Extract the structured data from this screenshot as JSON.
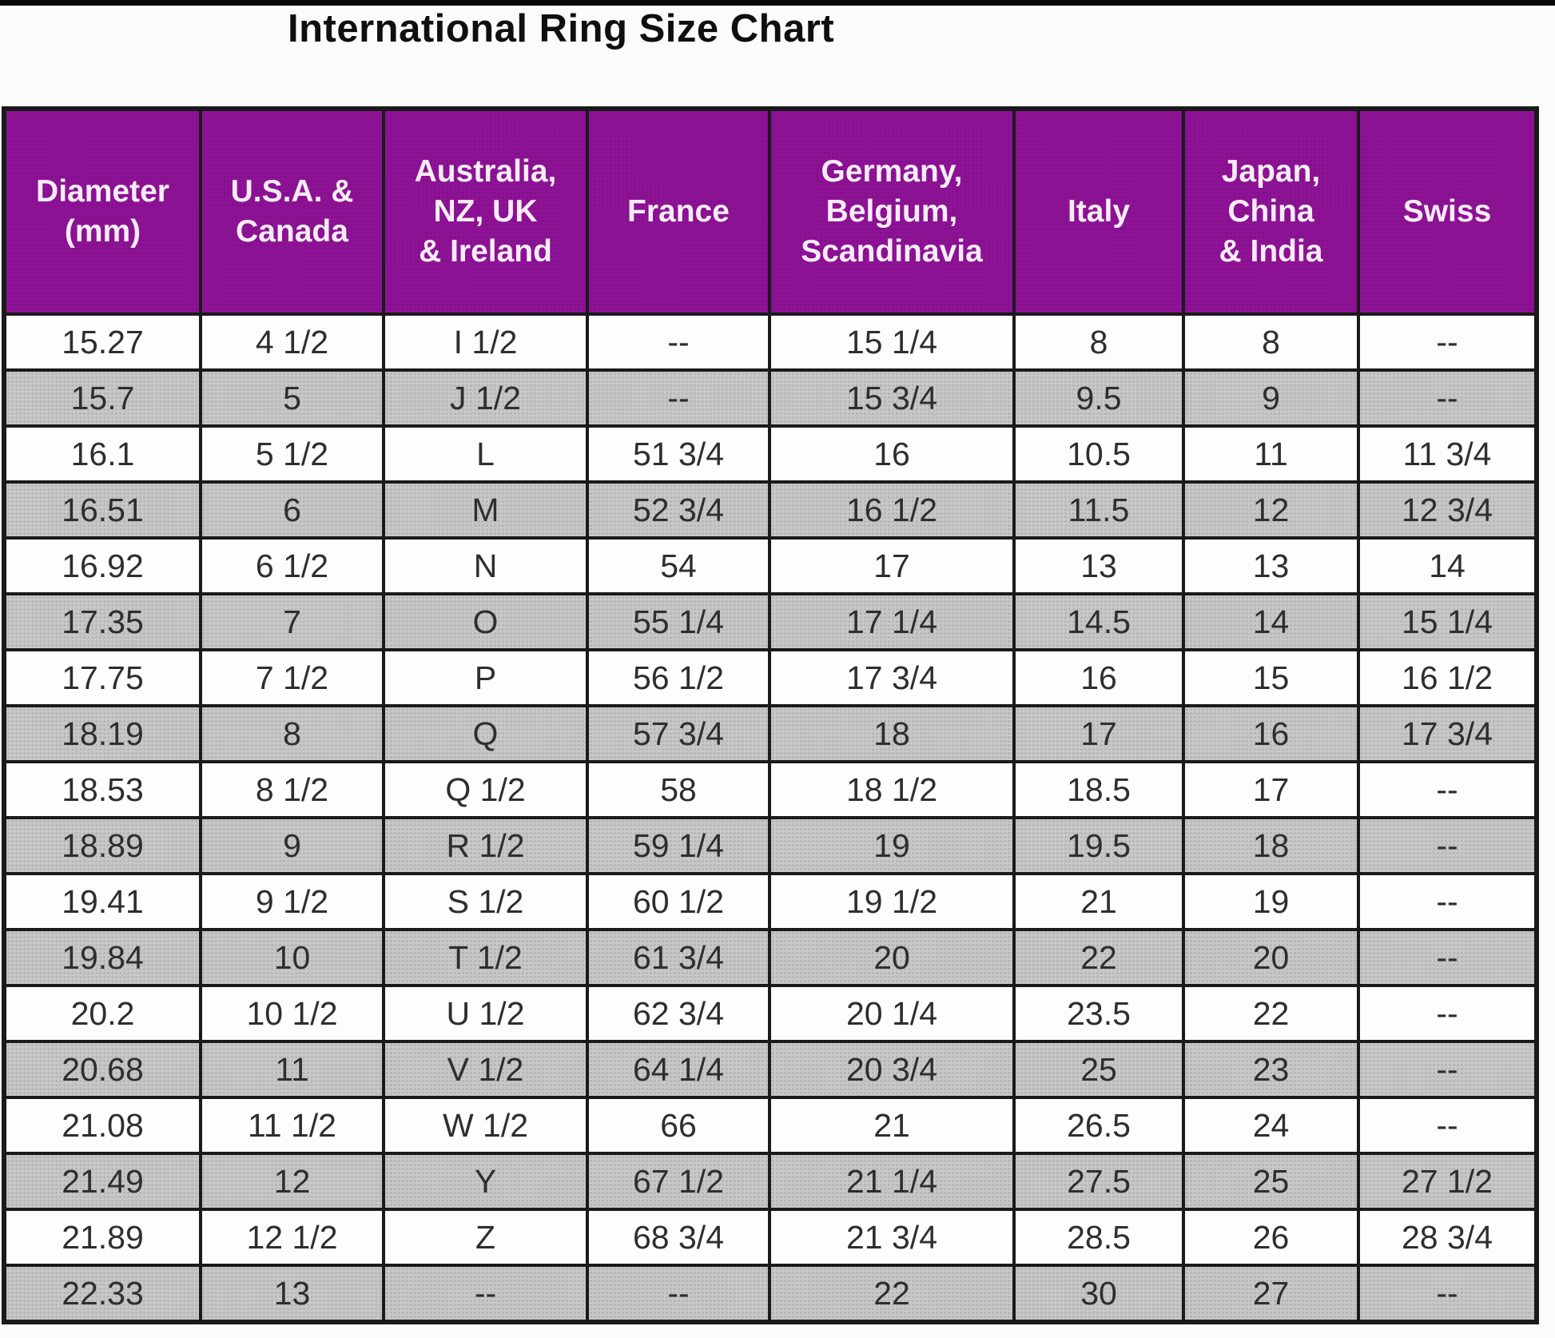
{
  "title": "International Ring Size Chart",
  "colors": {
    "top_strip": "#0a0a0a",
    "title_text": "#0f0f0f",
    "header_bg": "#8d1295",
    "header_text": "#f6ecf6",
    "row_bg": "#fdfdfd",
    "stripe_bg": "#c7c7c7",
    "border": "#1a1a1a",
    "cell_text": "#2e2e2e"
  },
  "chart_data": {
    "type": "table",
    "title": "International Ring Size Chart",
    "columns": [
      "Diameter\n(mm)",
      "U.S.A. &\nCanada",
      "Australia,\nNZ, UK\n& Ireland",
      "France",
      "Germany,\nBelgium,\nScandinavia",
      "Italy",
      "Japan,\nChina\n& India",
      "Swiss"
    ],
    "rows": [
      [
        "15.27",
        "4 1/2",
        "I 1/2",
        "--",
        "15 1/4",
        "8",
        "8",
        "--"
      ],
      [
        "15.7",
        "5",
        "J 1/2",
        "--",
        "15 3/4",
        "9.5",
        "9",
        "--"
      ],
      [
        "16.1",
        "5 1/2",
        "L",
        "51 3/4",
        "16",
        "10.5",
        "11",
        "11 3/4"
      ],
      [
        "16.51",
        "6",
        "M",
        "52 3/4",
        "16 1/2",
        "11.5",
        "12",
        "12 3/4"
      ],
      [
        "16.92",
        "6 1/2",
        "N",
        "54",
        "17",
        "13",
        "13",
        "14"
      ],
      [
        "17.35",
        "7",
        "O",
        "55 1/4",
        "17 1/4",
        "14.5",
        "14",
        "15 1/4"
      ],
      [
        "17.75",
        "7 1/2",
        "P",
        "56 1/2",
        "17 3/4",
        "16",
        "15",
        "16 1/2"
      ],
      [
        "18.19",
        "8",
        "Q",
        "57 3/4",
        "18",
        "17",
        "16",
        "17 3/4"
      ],
      [
        "18.53",
        "8 1/2",
        "Q 1/2",
        "58",
        "18 1/2",
        "18.5",
        "17",
        "--"
      ],
      [
        "18.89",
        "9",
        "R 1/2",
        "59 1/4",
        "19",
        "19.5",
        "18",
        "--"
      ],
      [
        "19.41",
        "9 1/2",
        "S 1/2",
        "60 1/2",
        "19 1/2",
        "21",
        "19",
        "--"
      ],
      [
        "19.84",
        "10",
        "T 1/2",
        "61 3/4",
        "20",
        "22",
        "20",
        "--"
      ],
      [
        "20.2",
        "10 1/2",
        "U 1/2",
        "62 3/4",
        "20 1/4",
        "23.5",
        "22",
        "--"
      ],
      [
        "20.68",
        "11",
        "V 1/2",
        "64 1/4",
        "20 3/4",
        "25",
        "23",
        "--"
      ],
      [
        "21.08",
        "11 1/2",
        "W 1/2",
        "66",
        "21",
        "26.5",
        "24",
        "--"
      ],
      [
        "21.49",
        "12",
        "Y",
        "67 1/2",
        "21 1/4",
        "27.5",
        "25",
        "27 1/2"
      ],
      [
        "21.89",
        "12 1/2",
        "Z",
        "68 3/4",
        "21 3/4",
        "28.5",
        "26",
        "28 3/4"
      ],
      [
        "22.33",
        "13",
        "--",
        "--",
        "22",
        "30",
        "27",
        "--"
      ]
    ],
    "layout": {
      "header_position": "top",
      "striping": "alternating white and gray rows, first data row white",
      "grid": "black borders around all cells",
      "title_position": "above table, left-of-center"
    }
  }
}
